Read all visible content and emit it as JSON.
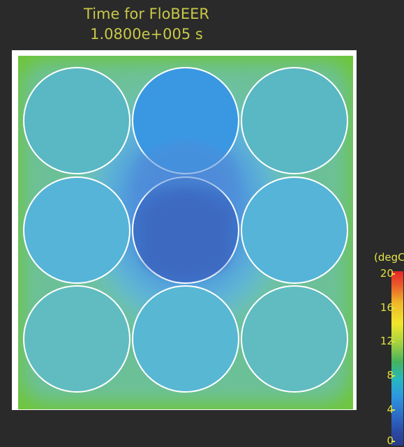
{
  "header": {
    "title": "Time for FloBEER",
    "time_value": "1.0800e+005 s"
  },
  "colorbar": {
    "unit": "(degC)",
    "ticks": [
      "20",
      "16",
      "12",
      "8",
      "4",
      "0"
    ],
    "min": 0,
    "max": 20
  },
  "colors": {
    "background": "#2a2a2a",
    "title_text": "#c8c84a",
    "field_ambient": "#6ec63a",
    "cylinder_outline": "#ffffff",
    "cold_core": "#3d72c9"
  },
  "cells": [
    {
      "id": "top-left",
      "temp_degC": 7
    },
    {
      "id": "top-center",
      "temp_degC": 5
    },
    {
      "id": "top-right",
      "temp_degC": 7
    },
    {
      "id": "mid-left",
      "temp_degC": 6
    },
    {
      "id": "center",
      "temp_degC": 2
    },
    {
      "id": "mid-right",
      "temp_degC": 6
    },
    {
      "id": "bottom-left",
      "temp_degC": 7
    },
    {
      "id": "bottom-center",
      "temp_degC": 6
    },
    {
      "id": "bottom-right",
      "temp_degC": 7
    }
  ]
}
